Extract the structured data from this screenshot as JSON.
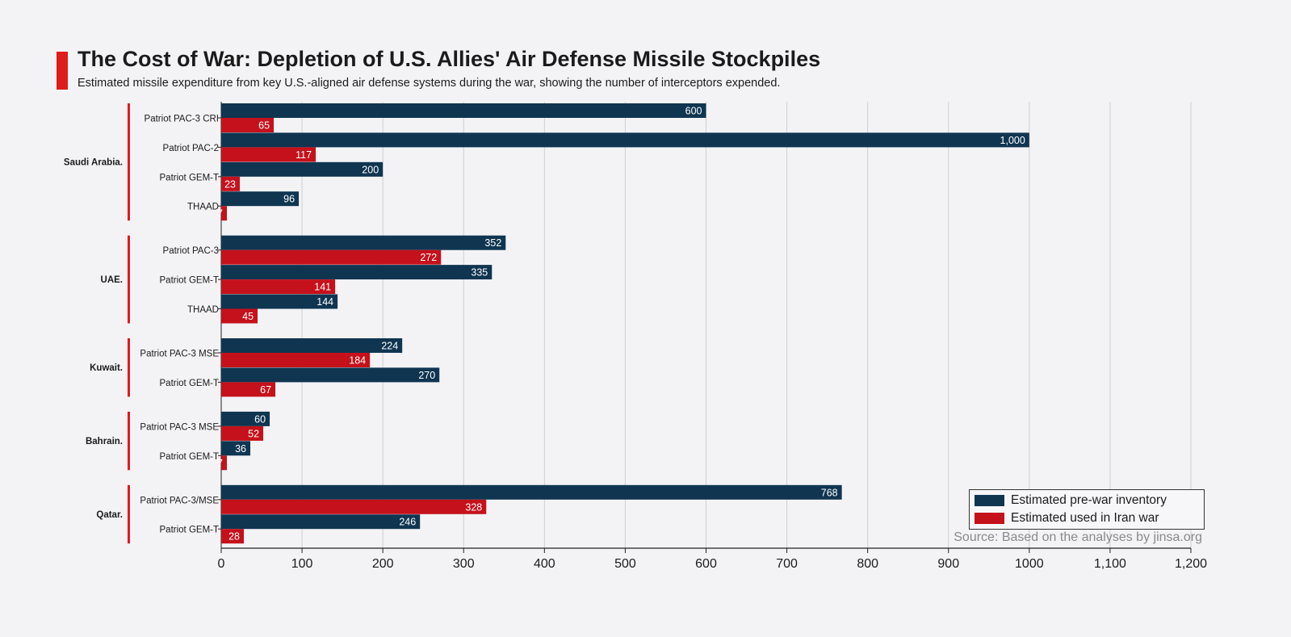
{
  "title": "The Cost of War: Depletion of U.S. Allies' Air Defense Missile Stockpiles",
  "subtitle": "Estimated missile expenditure from key U.S.-aligned air defense systems during the war, showing the number of interceptors expended.",
  "source": "Source:  Based on the analyses by jinsa.org",
  "colors": {
    "inventory": "#0f3551",
    "used": "#c5111b",
    "accent": "#e01b1b",
    "grid": "#cfcfd4"
  },
  "chart_data": {
    "type": "bar",
    "orientation": "horizontal",
    "xlim": [
      0,
      1200
    ],
    "x_ticks": [
      {
        "value": 0,
        "label": "0"
      },
      {
        "value": 100,
        "label": "100"
      },
      {
        "value": 200,
        "label": "200"
      },
      {
        "value": 300,
        "label": "300"
      },
      {
        "value": 400,
        "label": "400"
      },
      {
        "value": 500,
        "label": "500"
      },
      {
        "value": 600,
        "label": "600"
      },
      {
        "value": 700,
        "label": "700"
      },
      {
        "value": 800,
        "label": "800"
      },
      {
        "value": 900,
        "label": "900"
      },
      {
        "value": 1000,
        "label": "1000"
      },
      {
        "value": 1100,
        "label": "1,100"
      },
      {
        "value": 1200,
        "label": "1,200"
      }
    ],
    "grid": true,
    "legend_position": "bottom-right",
    "series": [
      {
        "key": "inventory",
        "name": "Estimated pre-war inventory"
      },
      {
        "key": "used",
        "name": "Estimated used in Iran war"
      }
    ],
    "groups": [
      {
        "country": "Saudi Arabia.",
        "systems": [
          {
            "name": "Patriot PAC-3 CRI",
            "inventory": 600,
            "inventory_label": "600",
            "used": 65,
            "used_label": "65"
          },
          {
            "name": "Patriot PAC-2",
            "inventory": 1000,
            "inventory_label": "1,000",
            "used": 117,
            "used_label": "117"
          },
          {
            "name": "Patriot GEM-T",
            "inventory": 200,
            "inventory_label": "200",
            "used": 23,
            "used_label": "23"
          },
          {
            "name": "THAAD",
            "inventory": 96,
            "inventory_label": "96",
            "used": 7,
            "used_label": "7"
          }
        ]
      },
      {
        "country": "UAE.",
        "systems": [
          {
            "name": "Patriot PAC-3",
            "inventory": 352,
            "inventory_label": "352",
            "used": 272,
            "used_label": "272"
          },
          {
            "name": "Patriot GEM-T",
            "inventory": 335,
            "inventory_label": "335",
            "used": 141,
            "used_label": "141"
          },
          {
            "name": "THAAD",
            "inventory": 144,
            "inventory_label": "144",
            "used": 45,
            "used_label": "45"
          }
        ]
      },
      {
        "country": "Kuwait.",
        "systems": [
          {
            "name": "Patriot PAC-3 MSE",
            "inventory": 224,
            "inventory_label": "224",
            "used": 184,
            "used_label": "184"
          },
          {
            "name": "Patriot GEM-T",
            "inventory": 270,
            "inventory_label": "270",
            "used": 67,
            "used_label": "67"
          }
        ]
      },
      {
        "country": "Bahrain.",
        "systems": [
          {
            "name": "Patriot PAC-3 MSE",
            "inventory": 60,
            "inventory_label": "60",
            "used": 52,
            "used_label": "52"
          },
          {
            "name": "Patriot GEM-T",
            "inventory": 36,
            "inventory_label": "36",
            "used": 7,
            "used_label": "7"
          }
        ]
      },
      {
        "country": "Qatar.",
        "systems": [
          {
            "name": "Patriot PAC-3/MSE",
            "inventory": 768,
            "inventory_label": "768",
            "used": 328,
            "used_label": "328"
          },
          {
            "name": "Patriot GEM-T",
            "inventory": 246,
            "inventory_label": "246",
            "used": 28,
            "used_label": "28"
          }
        ]
      }
    ]
  }
}
